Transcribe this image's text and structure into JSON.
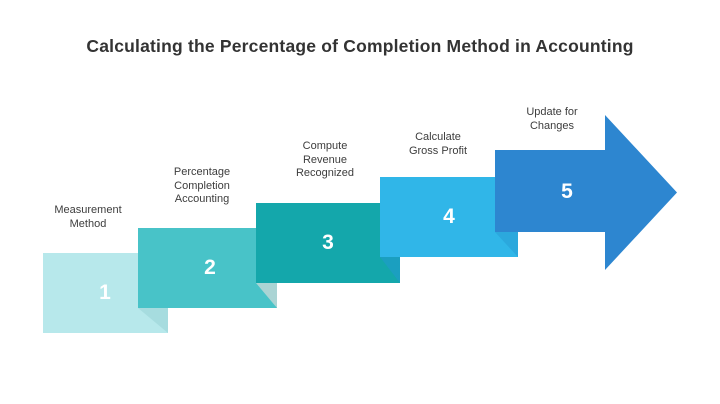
{
  "title": "Calculating the Percentage of Completion Method in Accounting",
  "colors": {
    "background": "#ffffff",
    "title_text": "#333333",
    "label_text": "#3d3d3d",
    "number_text": "#ffffff"
  },
  "steps": [
    {
      "number": "1",
      "label": "Measurement\nMethod",
      "color": "#b7e8eb",
      "fold_color": "#a6dcdf"
    },
    {
      "number": "2",
      "label": "Percentage\nCompletion\nAccounting",
      "color": "#48c3c8",
      "fold_color": "#aad4d4"
    },
    {
      "number": "3",
      "label": "Compute\nRevenue\nRecognized",
      "color": "#14a7ab",
      "fold_color": "#1b9fc0"
    },
    {
      "number": "4",
      "label": "Calculate\nGross Profit",
      "color": "#30b6e8",
      "fold_color": "#2ba8dd"
    },
    {
      "number": "5",
      "label": "Update for\nChanges",
      "color": "#2d86d0",
      "fold_color": null
    }
  ]
}
